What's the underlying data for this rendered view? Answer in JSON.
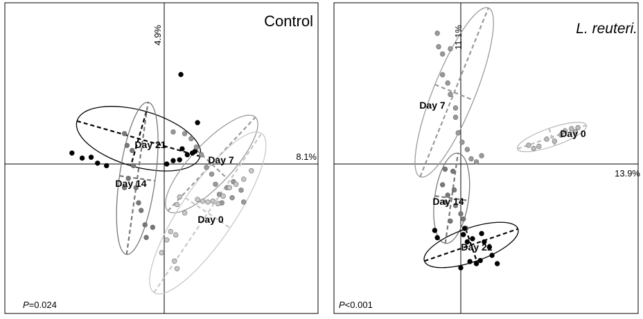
{
  "chart_data": [
    {
      "type": "scatter",
      "title": "Control",
      "x_axis_pct": "8.1%",
      "y_axis_pct": "4.9%",
      "p_label": "P",
      "p_value": "=0.024",
      "groups": [
        {
          "label": "Day 21",
          "color": "#000000",
          "points": [
            [
              -0.72,
              0.13
            ],
            [
              -0.64,
              0.07
            ],
            [
              -0.57,
              0.08
            ],
            [
              -0.52,
              0.01
            ],
            [
              -0.45,
              -0.02
            ],
            [
              0.13,
              1.06
            ],
            [
              0.26,
              0.49
            ],
            [
              0.14,
              0.18
            ],
            [
              0.18,
              0.11
            ],
            [
              0.24,
              0.15
            ],
            [
              0.07,
              0.04
            ],
            [
              0.02,
              0.0
            ],
            [
              0.12,
              0.05
            ],
            [
              0.22,
              0.13
            ]
          ],
          "ellipse": {
            "cx": -0.2,
            "cy": 0.3,
            "rx": 0.5,
            "ry": 0.22,
            "angle": 16
          }
        },
        {
          "label": "Day 14",
          "color": "#777777",
          "points": [
            [
              -0.31,
              0.36
            ],
            [
              -0.29,
              0.22
            ],
            [
              -0.25,
              0.16
            ],
            [
              -0.24,
              -0.02
            ],
            [
              -0.22,
              -0.28
            ],
            [
              -0.2,
              -0.46
            ],
            [
              -0.18,
              -0.55
            ],
            [
              -0.15,
              -0.72
            ],
            [
              -0.14,
              -0.87
            ],
            [
              -0.09,
              -0.75
            ],
            [
              -0.31,
              -0.28
            ],
            [
              -0.28,
              -0.17
            ]
          ],
          "ellipse": {
            "cx": -0.21,
            "cy": -0.17,
            "rx": 0.6,
            "ry": 0.14,
            "angle": -82
          }
        },
        {
          "label": "Day 7",
          "color": "#999999",
          "points": [
            [
              0.07,
              0.38
            ],
            [
              0.16,
              0.36
            ],
            [
              0.21,
              0.3
            ],
            [
              0.25,
              0.2
            ],
            [
              0.29,
              0.11
            ],
            [
              0.33,
              -0.04
            ],
            [
              0.37,
              -0.12
            ],
            [
              0.4,
              -0.24
            ],
            [
              0.43,
              -0.36
            ],
            [
              0.49,
              -0.28
            ],
            [
              0.54,
              -0.21
            ],
            [
              0.6,
              -0.31
            ],
            [
              0.62,
              -0.45
            ],
            [
              0.45,
              -0.46
            ],
            [
              0.53,
              -0.4
            ]
          ],
          "ellipse": {
            "cx": 0.37,
            "cy": 0.0,
            "rx": 0.5,
            "ry": 0.16,
            "angle": -47
          }
        },
        {
          "label": "Day 0",
          "color": "#c8c8c8",
          "points": [
            [
              0.12,
              -0.39
            ],
            [
              0.26,
              -0.42
            ],
            [
              0.3,
              -0.44
            ],
            [
              0.34,
              -0.45
            ],
            [
              0.38,
              -0.44
            ],
            [
              0.42,
              -0.47
            ],
            [
              0.46,
              -0.38
            ],
            [
              0.51,
              -0.28
            ],
            [
              0.56,
              -0.24
            ],
            [
              0.62,
              -0.18
            ],
            [
              0.68,
              -0.08
            ],
            [
              0.1,
              -0.48
            ],
            [
              0.05,
              -0.8
            ],
            [
              0.02,
              -0.9
            ],
            [
              -0.02,
              -1.05
            ],
            [
              0.09,
              -0.84
            ],
            [
              0.08,
              -1.15
            ],
            [
              0.1,
              -1.24
            ],
            [
              0.16,
              -0.58
            ]
          ],
          "ellipse": {
            "cx": 0.34,
            "cy": -0.58,
            "rx": 0.75,
            "ry": 0.21,
            "angle": -56
          }
        }
      ]
    },
    {
      "type": "scatter",
      "title": "L. reuteri.",
      "x_axis_pct": "13.9%",
      "y_axis_pct": "11.1%",
      "p_label": "P",
      "p_value": "<0.001",
      "groups": [
        {
          "label": "Day 7",
          "color": "#999999",
          "points": [
            [
              -0.18,
              1.26
            ],
            [
              -0.17,
              1.13
            ],
            [
              -0.14,
              1.06
            ],
            [
              -0.08,
              1.11
            ],
            [
              -0.14,
              0.86
            ],
            [
              -0.1,
              0.78
            ],
            [
              -0.08,
              0.67
            ],
            [
              -0.04,
              0.54
            ],
            [
              -0.04,
              0.45
            ],
            [
              -0.02,
              0.3
            ],
            [
              0.01,
              0.21
            ],
            [
              0.05,
              0.14
            ],
            [
              0.08,
              0.05
            ],
            [
              0.12,
              0.02
            ],
            [
              0.16,
              0.08
            ]
          ],
          "ellipse": {
            "cx": -0.05,
            "cy": 0.69,
            "rx": 0.7,
            "ry": 0.16,
            "angle": -68
          }
        },
        {
          "label": "Day 0",
          "color": "#bbbbbb",
          "points": [
            [
              0.52,
              0.18
            ],
            [
              0.56,
              0.15
            ],
            [
              0.6,
              0.17
            ],
            [
              0.66,
              0.24
            ],
            [
              0.72,
              0.22
            ],
            [
              0.77,
              0.28
            ],
            [
              0.8,
              0.32
            ],
            [
              0.85,
              0.34
            ],
            [
              0.88,
              0.31
            ],
            [
              0.9,
              0.35
            ]
          ],
          "ellipse": {
            "cx": 0.7,
            "cy": 0.26,
            "rx": 0.28,
            "ry": 0.07,
            "angle": -19
          }
        },
        {
          "label": "Day 14",
          "color": "#777777",
          "points": [
            [
              -0.12,
              -0.05
            ],
            [
              -0.06,
              -0.07
            ],
            [
              -0.14,
              -0.2
            ],
            [
              -0.05,
              -0.25
            ],
            [
              -0.1,
              -0.3
            ],
            [
              -0.12,
              -0.37
            ],
            [
              -0.04,
              -0.4
            ],
            [
              0.0,
              -0.48
            ],
            [
              -0.08,
              -0.55
            ],
            [
              0.02,
              -0.53
            ],
            [
              0.04,
              -0.62
            ]
          ],
          "ellipse": {
            "cx": -0.07,
            "cy": -0.33,
            "rx": 0.35,
            "ry": 0.13,
            "angle": -82
          }
        },
        {
          "label": "Day 21",
          "color": "#000000",
          "points": [
            [
              -0.2,
              -0.64
            ],
            [
              -0.18,
              -0.71
            ],
            [
              0.03,
              -0.62
            ],
            [
              0.02,
              -0.68
            ],
            [
              0.05,
              -0.75
            ],
            [
              0.09,
              -0.72
            ],
            [
              0.16,
              -0.67
            ],
            [
              0.18,
              -0.75
            ],
            [
              0.22,
              -0.8
            ],
            [
              0.24,
              -0.88
            ],
            [
              0.07,
              -0.94
            ],
            [
              0.15,
              -0.93
            ],
            [
              0.12,
              -0.96
            ],
            [
              0.0,
              -1.0
            ],
            [
              0.28,
              -0.96
            ]
          ],
          "ellipse": {
            "cx": 0.08,
            "cy": -0.78,
            "rx": 0.38,
            "ry": 0.13,
            "angle": -19
          }
        }
      ]
    }
  ]
}
